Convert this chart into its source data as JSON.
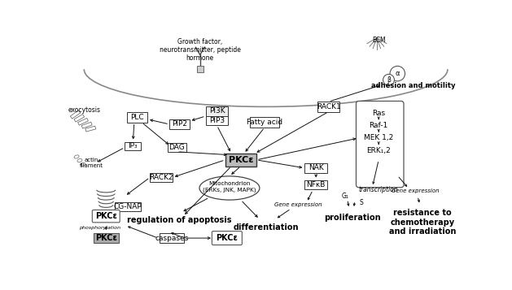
{
  "background_color": "#ffffff",
  "labels": {
    "growth_factor": "Growth factor,\nneurotransmitter, peptide\nhormone",
    "ecm": "ECM",
    "exocytosis": "exocytosis",
    "adhesion_motility": "adhesion and motility",
    "plc": "PLC",
    "pi3k": "PI3K",
    "pip2": "PIP2",
    "pip3": "PIP3",
    "fatty_acid": "Fatty acid",
    "rack1": "RACK1",
    "ip3": "IP₃",
    "dag": "DAG",
    "pkce_main": "PKCε",
    "rack2": "RACK2",
    "nak": "NAK",
    "nfkb": "NFκB",
    "ras": "Ras",
    "raf1": "Raf-1",
    "mek": "MEK 1,2",
    "erk": "ERK₁,2",
    "mitochondrion": "Mitochondrion\n(ERKs, JNK, MAPK)",
    "golgi": "Golgi",
    "cgnap": "CG-NAP",
    "pkce_cgnap": "PKCε",
    "pkce_bottom_gray": "PKCε",
    "pkce_bottom_right": "PKCε",
    "caspases": "caspases",
    "phosphorylation": "phosphorylation",
    "gene_expression1": "Gene expression",
    "gene_expression2": "Gene expression",
    "transcription": "transcription",
    "regulation_apoptosis": "regulation of apoptosis",
    "differentiation": "differentiation",
    "proliferation": "proliferation",
    "g1": "G₁",
    "s": "S",
    "resistance": "resistance to\nchemotherapy\nand irradiation",
    "actin_filament": "actin\nfilament",
    "alpha": "α",
    "beta": "β"
  }
}
